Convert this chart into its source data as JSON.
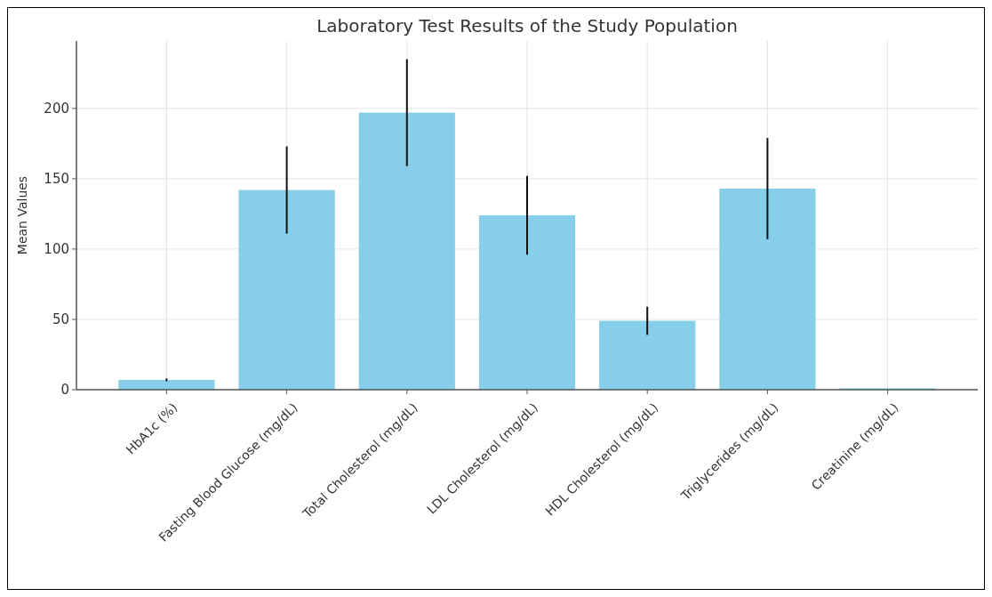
{
  "chart_data": {
    "type": "bar",
    "title": "Laboratory Test Results of the Study Population",
    "ylabel": "Mean Values",
    "categories": [
      "HbA1c (%)",
      "Fasting Blood Glucose (mg/dL)",
      "Total Cholesterol (mg/dL)",
      "LDL Cholesterol (mg/dL)",
      "HDL Cholesterol (mg/dL)",
      "Triglycerides (mg/dL)",
      "Creatinine (mg/dL)"
    ],
    "values": [
      7,
      142,
      197,
      124,
      49,
      143,
      1
    ],
    "errors": [
      1,
      31,
      38,
      28,
      10,
      36,
      null
    ],
    "color": "#87ceeb",
    "ylim": [
      0,
      248
    ],
    "yticks": [
      0,
      50,
      100,
      150,
      200
    ],
    "grid": true
  }
}
